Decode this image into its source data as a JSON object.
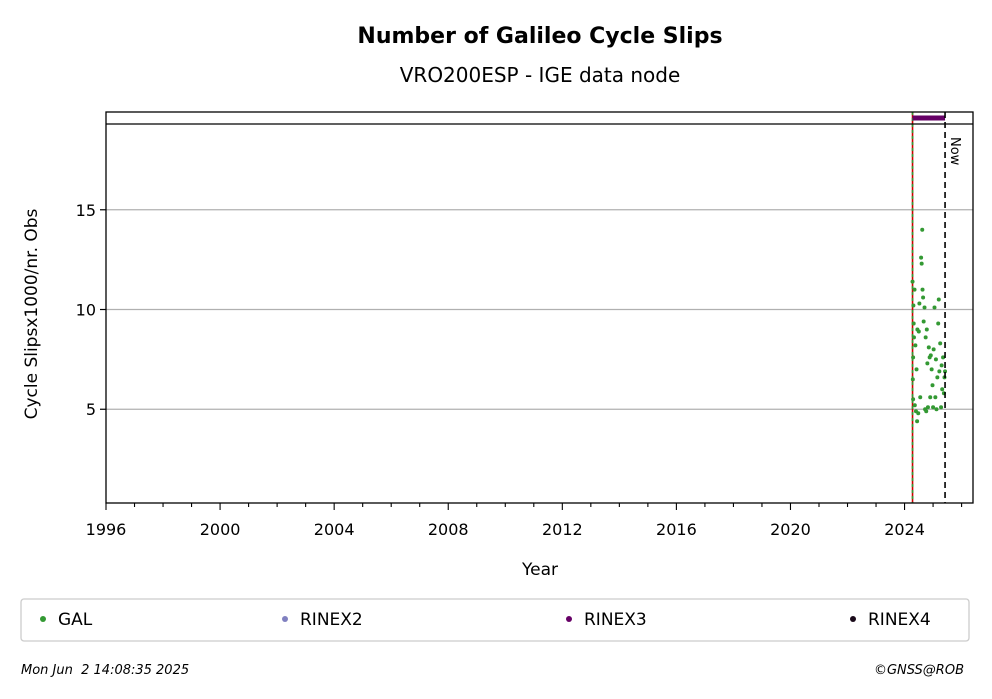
{
  "chart_data": {
    "type": "scatter",
    "title": "Number of Galileo Cycle Slips",
    "subtitle": "VRO200ESP - IGE data node",
    "xlabel": "Year",
    "ylabel": "Cycle Slipsx1000/nr. Obs",
    "xlim": [
      1996,
      2026.4
    ],
    "ylim": [
      0.3,
      19.3
    ],
    "xticks": [
      1996,
      2000,
      2004,
      2008,
      2012,
      2016,
      2020,
      2024
    ],
    "yticks": [
      5,
      10,
      15
    ],
    "grid": "horizontal",
    "legend_position": "bottom",
    "now_label": "Now",
    "now_x": 2025.42,
    "start_x": 2024.28,
    "series": [
      {
        "name": "GAL",
        "color": "#339933",
        "summary": {
          "x_start": 2024.28,
          "x_end": 2025.42,
          "y_typical_min": 4.8,
          "y_typical_max": 8.6
        },
        "points": [
          [
            2024.28,
            11.4
          ],
          [
            2024.29,
            6.5
          ],
          [
            2024.3,
            5.5
          ],
          [
            2024.3,
            7.6
          ],
          [
            2024.31,
            10.2
          ],
          [
            2024.32,
            9.3
          ],
          [
            2024.33,
            8.6
          ],
          [
            2024.35,
            11.0
          ],
          [
            2024.36,
            5.2
          ],
          [
            2024.38,
            8.2
          ],
          [
            2024.4,
            4.9
          ],
          [
            2024.42,
            7.0
          ],
          [
            2024.44,
            4.4
          ],
          [
            2024.45,
            9.0
          ],
          [
            2024.48,
            4.8
          ],
          [
            2024.5,
            8.9
          ],
          [
            2024.52,
            10.3
          ],
          [
            2024.55,
            5.6
          ],
          [
            2024.58,
            12.6
          ],
          [
            2024.6,
            12.3
          ],
          [
            2024.62,
            14.0
          ],
          [
            2024.63,
            11.0
          ],
          [
            2024.65,
            10.6
          ],
          [
            2024.67,
            9.4
          ],
          [
            2024.7,
            10.1
          ],
          [
            2024.72,
            5.0
          ],
          [
            2024.74,
            8.6
          ],
          [
            2024.76,
            4.9
          ],
          [
            2024.78,
            9.0
          ],
          [
            2024.8,
            7.3
          ],
          [
            2024.82,
            5.1
          ],
          [
            2024.85,
            8.1
          ],
          [
            2024.88,
            7.6
          ],
          [
            2024.9,
            5.6
          ],
          [
            2024.92,
            7.7
          ],
          [
            2024.95,
            7.0
          ],
          [
            2024.98,
            6.2
          ],
          [
            2025.0,
            5.1
          ],
          [
            2025.02,
            8.0
          ],
          [
            2025.05,
            10.1
          ],
          [
            2025.08,
            5.6
          ],
          [
            2025.1,
            7.5
          ],
          [
            2025.12,
            5.0
          ],
          [
            2025.15,
            6.6
          ],
          [
            2025.18,
            9.3
          ],
          [
            2025.2,
            10.5
          ],
          [
            2025.22,
            6.9
          ],
          [
            2025.25,
            8.3
          ],
          [
            2025.28,
            5.1
          ],
          [
            2025.3,
            7.2
          ],
          [
            2025.32,
            6.0
          ],
          [
            2025.35,
            7.6
          ],
          [
            2025.38,
            5.8
          ],
          [
            2025.4,
            6.6
          ],
          [
            2025.42,
            6.9
          ]
        ]
      },
      {
        "name": "RINEX2",
        "color": "#8080c0",
        "points": []
      },
      {
        "name": "RINEX3",
        "color": "#660066",
        "summary": {
          "x_start": 2024.28,
          "x_end": 2025.42,
          "y": 19.0
        }
      },
      {
        "name": "RINEX4",
        "color": "#1a0a1a",
        "points": []
      }
    ]
  },
  "footer": {
    "timestamp": "Mon Jun  2 14:08:35 2025",
    "credit": "©GNSS@ROB"
  }
}
